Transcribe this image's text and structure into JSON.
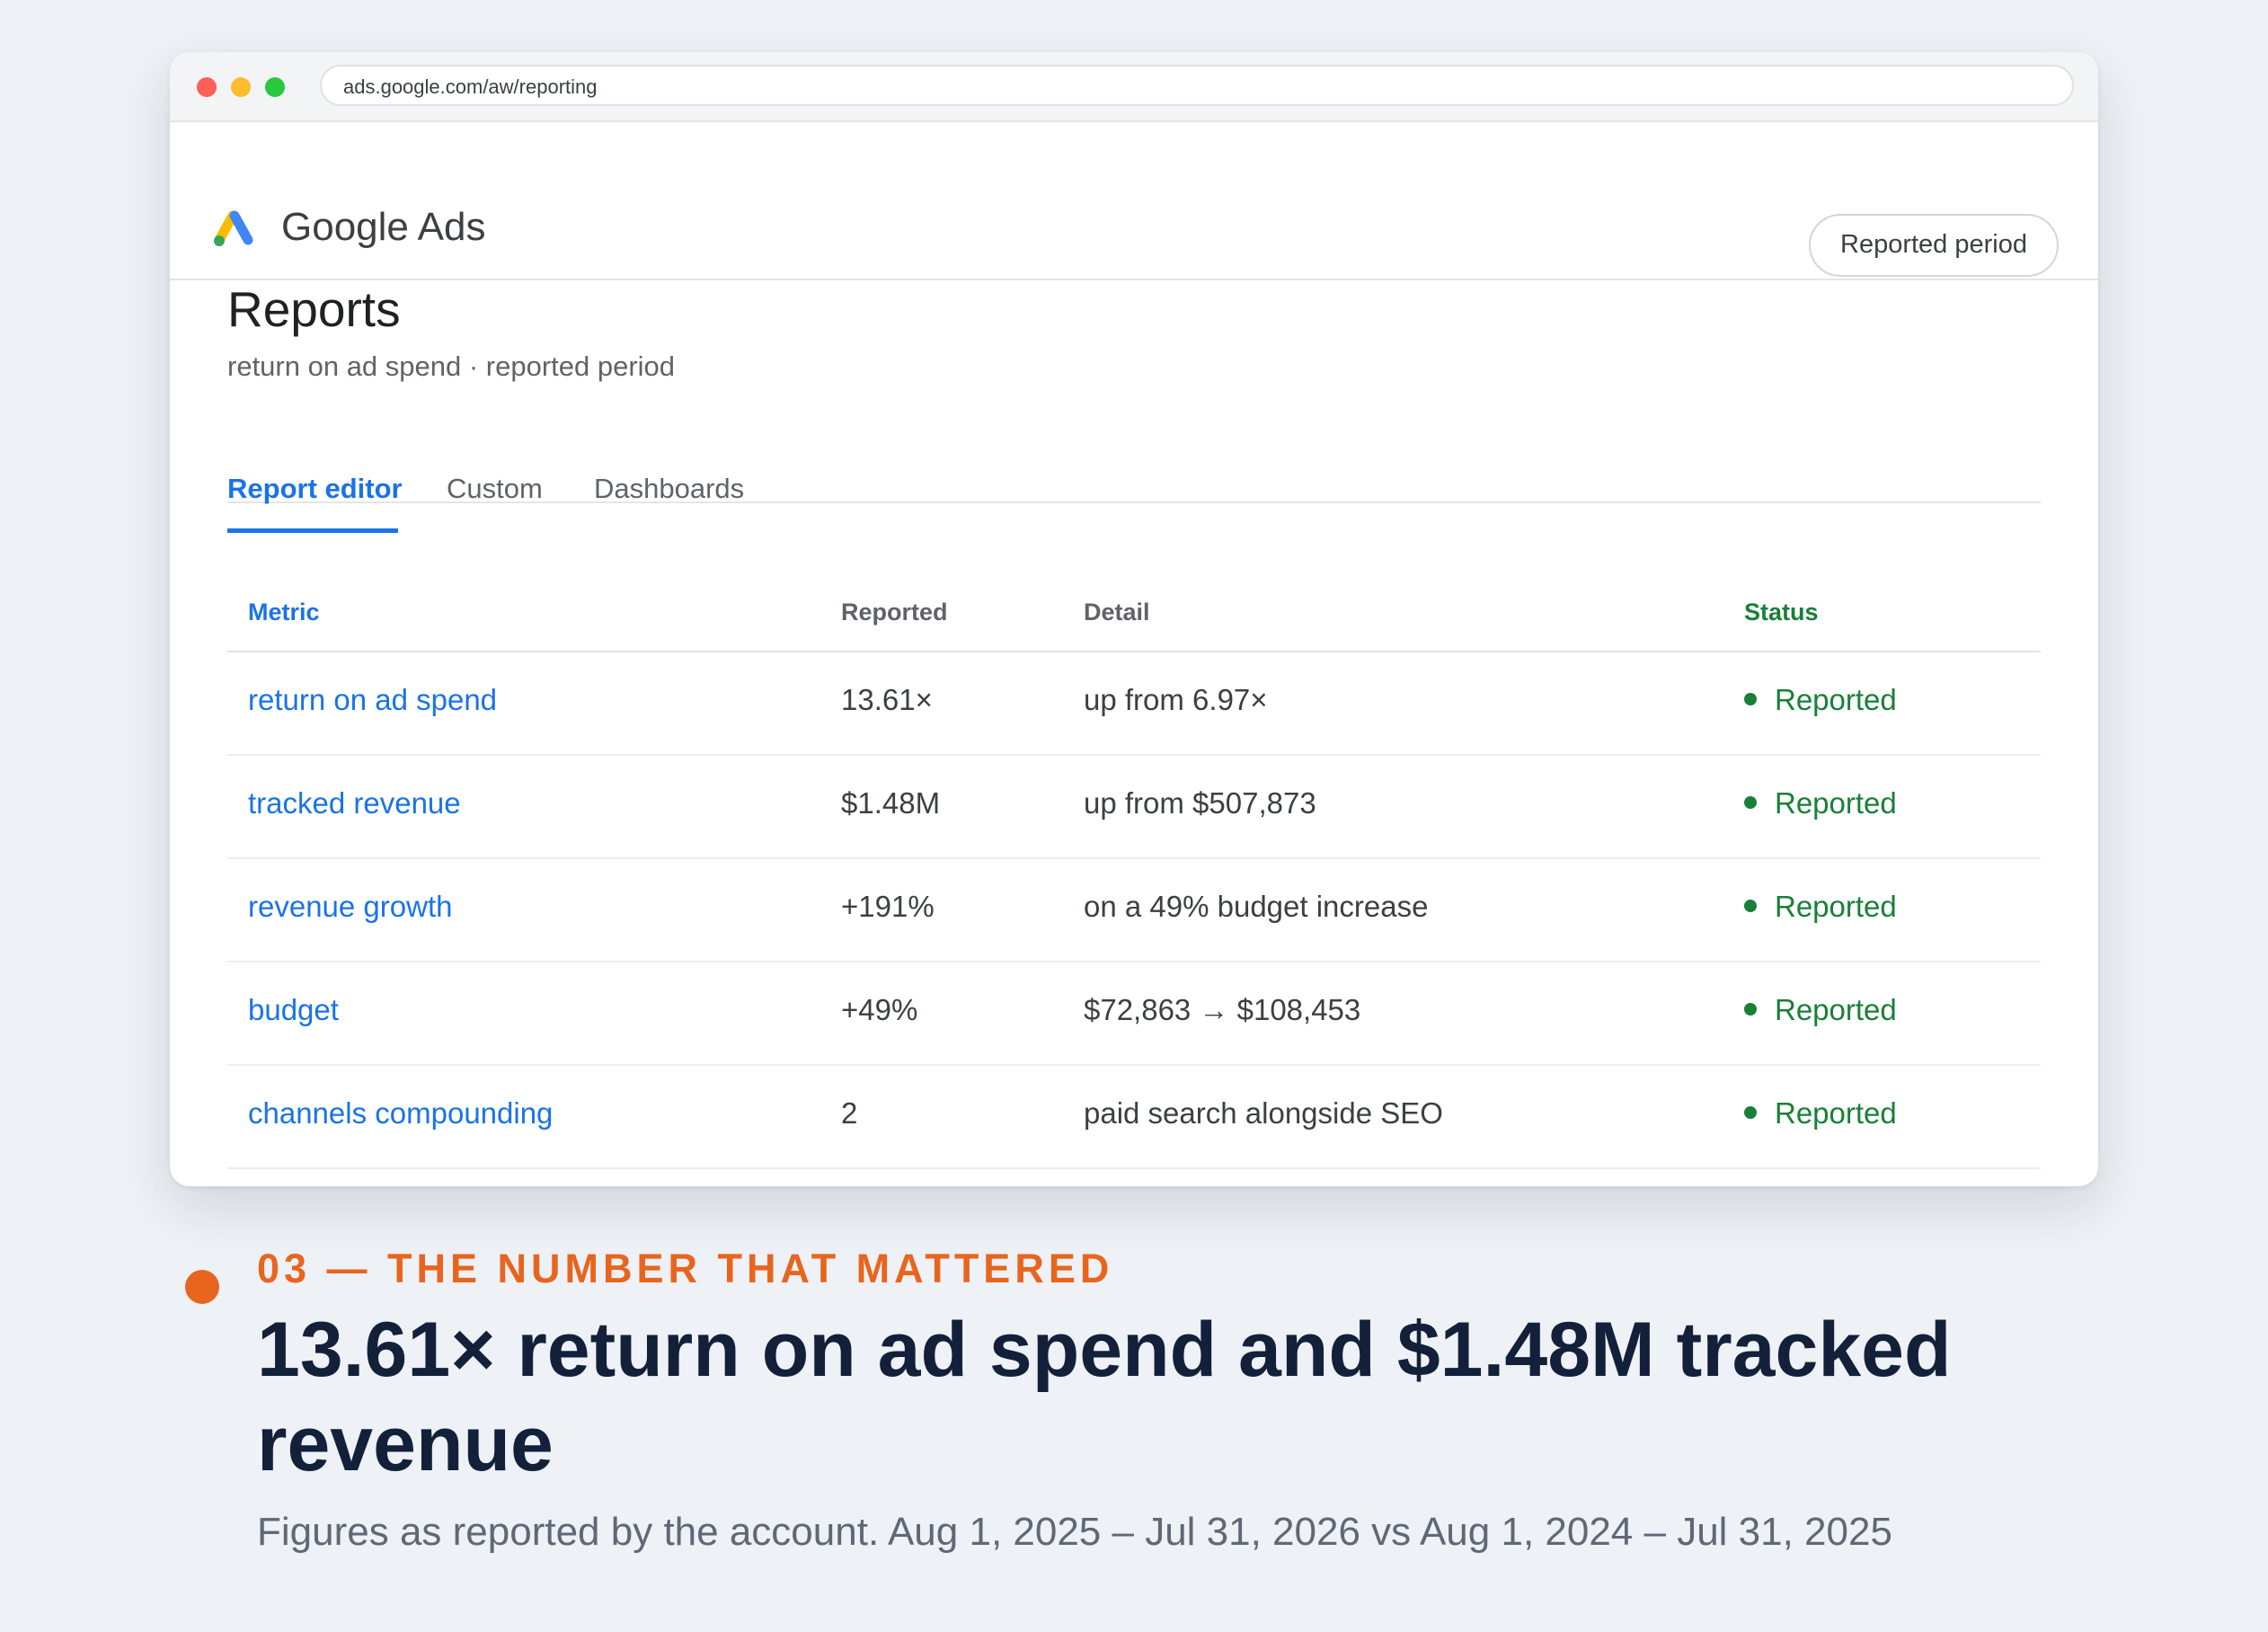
{
  "browser": {
    "url": "ads.google.com/aw/reporting"
  },
  "app": {
    "name": "Google Ads",
    "period_button": "Reported period"
  },
  "page": {
    "title": "Reports",
    "subtitle": "return on ad spend · reported period"
  },
  "tabs": [
    {
      "label": "Report editor",
      "active": true
    },
    {
      "label": "Custom",
      "active": false
    },
    {
      "label": "Dashboards",
      "active": false
    }
  ],
  "table": {
    "headers": [
      "Metric",
      "Reported",
      "Detail",
      "Status"
    ],
    "rows": [
      {
        "metric": "return on ad spend",
        "reported": "13.61×",
        "detail": "up from 6.97×",
        "status": "Reported"
      },
      {
        "metric": "tracked revenue",
        "reported": "$1.48M",
        "detail": "up from $507,873",
        "status": "Reported"
      },
      {
        "metric": "revenue growth",
        "reported": "+191%",
        "detail": "on a 49% budget increase",
        "status": "Reported"
      },
      {
        "metric": "budget",
        "reported": "+49%",
        "detail": "$72,863 → $108,453",
        "status": "Reported"
      },
      {
        "metric": "channels compounding",
        "reported": "2",
        "detail": "paid search alongside SEO",
        "status": "Reported"
      }
    ]
  },
  "callout": {
    "eyebrow": "03 — THE NUMBER THAT MATTERED",
    "headline": "13.61× return on ad spend and $1.48M tracked revenue",
    "footnote": "Figures as reported by the account. Aug 1, 2025 – Jul 31, 2026 vs Aug 1, 2024 – Jul 31, 2025"
  },
  "colors": {
    "accent_blue": "#1a73e8",
    "status_green": "#188038",
    "callout_orange": "#e8651f",
    "headline_navy": "#13203a"
  }
}
